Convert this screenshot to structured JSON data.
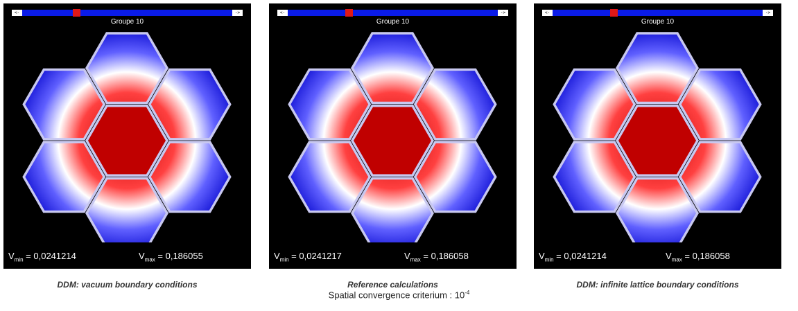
{
  "panels": [
    {
      "group_label": "Groupe 10",
      "scroll_left": "<-",
      "scroll_right": "->",
      "vmin_label": "V",
      "vmin_sub": "min",
      "vmin_value": " = 0,0241214",
      "vmax_label": "V",
      "vmax_sub": "max",
      "vmax_value": " = 0,186055",
      "caption": "DDM: vacuum boundary conditions"
    },
    {
      "group_label": "Groupe 10",
      "scroll_left": "<-",
      "scroll_right": "->",
      "vmin_label": "V",
      "vmin_sub": "min",
      "vmin_value": " = 0,0241217",
      "vmax_label": "V",
      "vmax_sub": "max",
      "vmax_value": " = 0,186058",
      "caption": "Reference calculations"
    },
    {
      "group_label": "Groupe 10",
      "scroll_left": "<-",
      "scroll_right": "->",
      "vmin_label": "V",
      "vmin_sub": "min",
      "vmin_value": " = 0,0241214",
      "vmax_label": "V",
      "vmax_sub": "max",
      "vmax_value": " = 0,186058",
      "caption": "DDM: infinite lattice boundary conditions"
    }
  ],
  "footer": {
    "text": "Spatial convergence criterium : 10",
    "exponent": "-4"
  },
  "colors": {
    "background": "#000000",
    "scroll_track": "#0a1be8",
    "scroll_thumb": "#e01818",
    "hot": "#c00000",
    "cold": "#0a0ad0",
    "frame": "#c8c8f0"
  }
}
